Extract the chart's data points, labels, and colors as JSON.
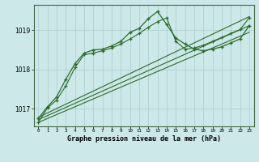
{
  "bg_color": "#cce8e8",
  "grid_color": "#aacccc",
  "line_color": "#2d6a2d",
  "title": "Graphe pression niveau de la mer (hPa)",
  "xlim": [
    -0.5,
    23.5
  ],
  "ylim": [
    1016.55,
    1019.65
  ],
  "yticks": [
    1017,
    1018,
    1019
  ],
  "xticks": [
    0,
    1,
    2,
    3,
    4,
    5,
    6,
    7,
    8,
    9,
    10,
    11,
    12,
    13,
    14,
    15,
    16,
    17,
    18,
    19,
    20,
    21,
    22,
    23
  ],
  "series_main": {
    "x": [
      0,
      1,
      2,
      3,
      4,
      5,
      6,
      7,
      8,
      9,
      10,
      11,
      12,
      13,
      14,
      15,
      16,
      17,
      18,
      19,
      20,
      21,
      22,
      23
    ],
    "y": [
      1016.75,
      1017.05,
      1017.3,
      1017.75,
      1018.15,
      1018.42,
      1018.5,
      1018.52,
      1018.6,
      1018.72,
      1018.95,
      1019.05,
      1019.3,
      1019.48,
      1019.15,
      1018.8,
      1018.65,
      1018.52,
      1018.48,
      1018.52,
      1018.58,
      1018.68,
      1018.78,
      1019.12
    ]
  },
  "series_secondary": {
    "x": [
      0,
      1,
      2,
      3,
      4,
      5,
      6,
      7,
      8,
      9,
      10,
      11,
      12,
      13,
      14,
      15,
      16,
      17,
      18,
      19,
      20,
      21,
      22,
      23
    ],
    "y": [
      1016.65,
      1017.02,
      1017.22,
      1017.58,
      1018.05,
      1018.38,
      1018.42,
      1018.48,
      1018.55,
      1018.65,
      1018.78,
      1018.92,
      1019.08,
      1019.22,
      1019.32,
      1018.72,
      1018.52,
      1018.55,
      1018.62,
      1018.72,
      1018.82,
      1018.92,
      1019.02,
      1019.32
    ]
  },
  "series_linear1": {
    "x": [
      0,
      23
    ],
    "y": [
      1016.65,
      1018.95
    ]
  },
  "series_linear2": {
    "x": [
      0,
      23
    ],
    "y": [
      1016.72,
      1019.12
    ]
  },
  "series_linear3": {
    "x": [
      0,
      23
    ],
    "y": [
      1016.78,
      1019.35
    ]
  }
}
